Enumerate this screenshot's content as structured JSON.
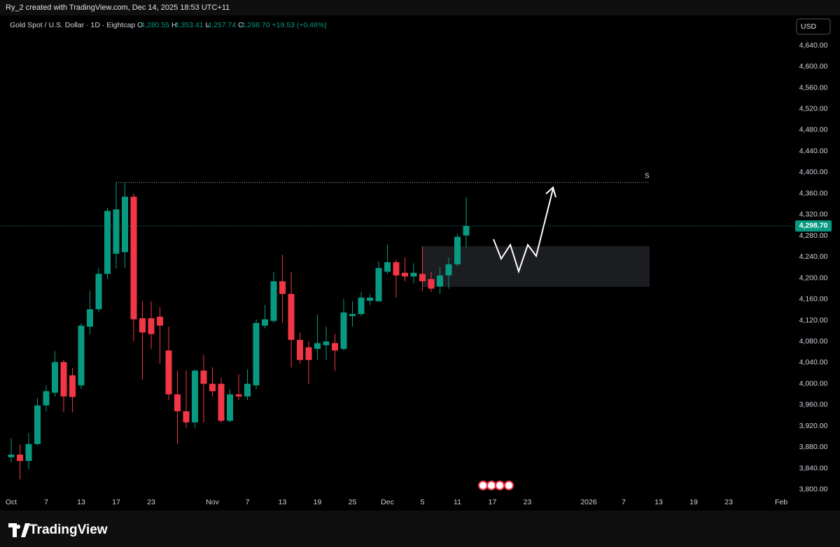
{
  "header": {
    "credit": "Ry_2 created with TradingView.com, Dec 14, 2025 18:53 UTC+11",
    "currency": "USD",
    "logo": "TradingView"
  },
  "chart_data": {
    "type": "candlestick",
    "legend": {
      "symbol": "Gold Spot / U.S. Dollar · 1D · Eightcap",
      "o_key": "O",
      "o": "4,280.55",
      "h_key": "H",
      "h": "4,353.41",
      "l_key": "L",
      "l": "4,257.74",
      "c_key": "C",
      "c": "4,298.70",
      "change": "+19.53 (+0.46%)"
    },
    "annotation": "S",
    "last_label": "4,298.70",
    "colors": {
      "up": "#089981",
      "down": "#f23645"
    },
    "open": [
      3861,
      3866,
      3854,
      3886,
      3959,
      3983,
      4041,
      4016,
      3997,
      4108,
      4141,
      4208,
      4246,
      4249,
      4354,
      4124,
      4124,
      4127,
      4063,
      3980,
      3948,
      3927,
      4025,
      4000,
      4000,
      3930,
      3980,
      3976,
      3997,
      4110,
      4119,
      4194,
      4170,
      4083,
      4069,
      4066,
      4073,
      4077,
      4066,
      4128,
      4132,
      4157,
      4156,
      4212,
      4230,
      4210,
      4203,
      4208,
      4198,
      4184,
      4205,
      4226,
      4280.55
    ],
    "high": [
      3897,
      3885,
      3907,
      3973,
      3997,
      4062,
      4045,
      4030,
      4115,
      4177,
      4219,
      4332,
      4381,
      4381,
      4360,
      4156,
      4156,
      4145,
      4108,
      4025,
      4025,
      4027,
      4055,
      4031,
      4011,
      3990,
      4018,
      4027,
      4122,
      4149,
      4212,
      4244,
      4212,
      4097,
      4080,
      4131,
      4108,
      4094,
      4160,
      4156,
      4174,
      4170,
      4232,
      4263,
      4235,
      4239,
      4228,
      4260,
      4212,
      4221,
      4239,
      4284,
      4353.41
    ],
    "low": [
      3851,
      3819,
      3838,
      3883,
      3948,
      3976,
      3946,
      3946,
      3990,
      4094,
      4135,
      4198,
      4218,
      4219,
      4080,
      4008,
      4066,
      4038,
      3969,
      3886,
      3916,
      3916,
      3927,
      3976,
      3927,
      3927,
      3969,
      3969,
      3990,
      4105,
      4115,
      4115,
      4031,
      4038,
      4000,
      4045,
      4045,
      4024,
      4063,
      4108,
      4128,
      4149,
      4156,
      4208,
      4163,
      4194,
      4190,
      4175,
      4174,
      4170,
      4180,
      4222,
      4257.74
    ],
    "close": [
      3866,
      3854,
      3886,
      3959,
      3986,
      4041,
      3976,
      3975,
      4110,
      4141,
      4208,
      4327,
      4330,
      4354,
      4122,
      4097,
      4094,
      4110,
      3980,
      3948,
      3927,
      4025,
      4000,
      3986,
      3930,
      3980,
      3976,
      4000,
      4115,
      4122,
      4194,
      4170,
      4083,
      4045,
      4045,
      4077,
      4080,
      4063,
      4135,
      4132,
      4163,
      4163,
      4219,
      4230,
      4205,
      4203,
      4210,
      4194,
      4180,
      4205,
      4226,
      4278,
      4298.7
    ],
    "xlim": [
      -1.28,
      94.72
    ],
    "xticks": [
      {
        "value": 0,
        "label": "Oct"
      },
      {
        "value": 4,
        "label": "7"
      },
      {
        "value": 8,
        "label": "13"
      },
      {
        "value": 12,
        "label": "17"
      },
      {
        "value": 16,
        "label": "23"
      },
      {
        "value": 23,
        "label": "Nov"
      },
      {
        "value": 27,
        "label": "7"
      },
      {
        "value": 31,
        "label": "13"
      },
      {
        "value": 35,
        "label": "19"
      },
      {
        "value": 39,
        "label": "25"
      },
      {
        "value": 43,
        "label": "Dec"
      },
      {
        "value": 47,
        "label": "5"
      },
      {
        "value": 51,
        "label": "11"
      },
      {
        "value": 55,
        "label": "17"
      },
      {
        "value": 59,
        "label": "23"
      },
      {
        "value": 66,
        "label": "2026"
      },
      {
        "value": 70,
        "label": "7"
      },
      {
        "value": 74,
        "label": "13"
      },
      {
        "value": 78,
        "label": "19"
      },
      {
        "value": 82,
        "label": "23"
      },
      {
        "value": 88,
        "label": "Feb"
      }
    ],
    "ylim": [
      3760,
      4697
    ],
    "yticks": [
      {
        "value": 3800,
        "label": "3,800.00"
      },
      {
        "value": 3840,
        "label": "3,840.00"
      },
      {
        "value": 3880,
        "label": "3,880.00"
      },
      {
        "value": 3920,
        "label": "3,920.00"
      },
      {
        "value": 3960,
        "label": "3,960.00"
      },
      {
        "value": 4000,
        "label": "4,000.00"
      },
      {
        "value": 4040,
        "label": "4,040.00"
      },
      {
        "value": 4080,
        "label": "4,080.00"
      },
      {
        "value": 4120,
        "label": "4,120.00"
      },
      {
        "value": 4160,
        "label": "4,160.00"
      },
      {
        "value": 4200,
        "label": "4,200.00"
      },
      {
        "value": 4240,
        "label": "4,240.00"
      },
      {
        "value": 4280,
        "label": "4,280.00"
      },
      {
        "value": 4320,
        "label": "4,320.00"
      },
      {
        "value": 4360,
        "label": "4,360.00"
      },
      {
        "value": 4400,
        "label": "4,400.00"
      },
      {
        "value": 4440,
        "label": "4,440.00"
      },
      {
        "value": 4480,
        "label": "4,480.00"
      },
      {
        "value": 4520,
        "label": "4,520.00"
      },
      {
        "value": 4560,
        "label": "4,560.00"
      },
      {
        "value": 4600,
        "label": "4,600.00"
      },
      {
        "value": 4640,
        "label": "4,640.00"
      }
    ],
    "grid": false
  }
}
